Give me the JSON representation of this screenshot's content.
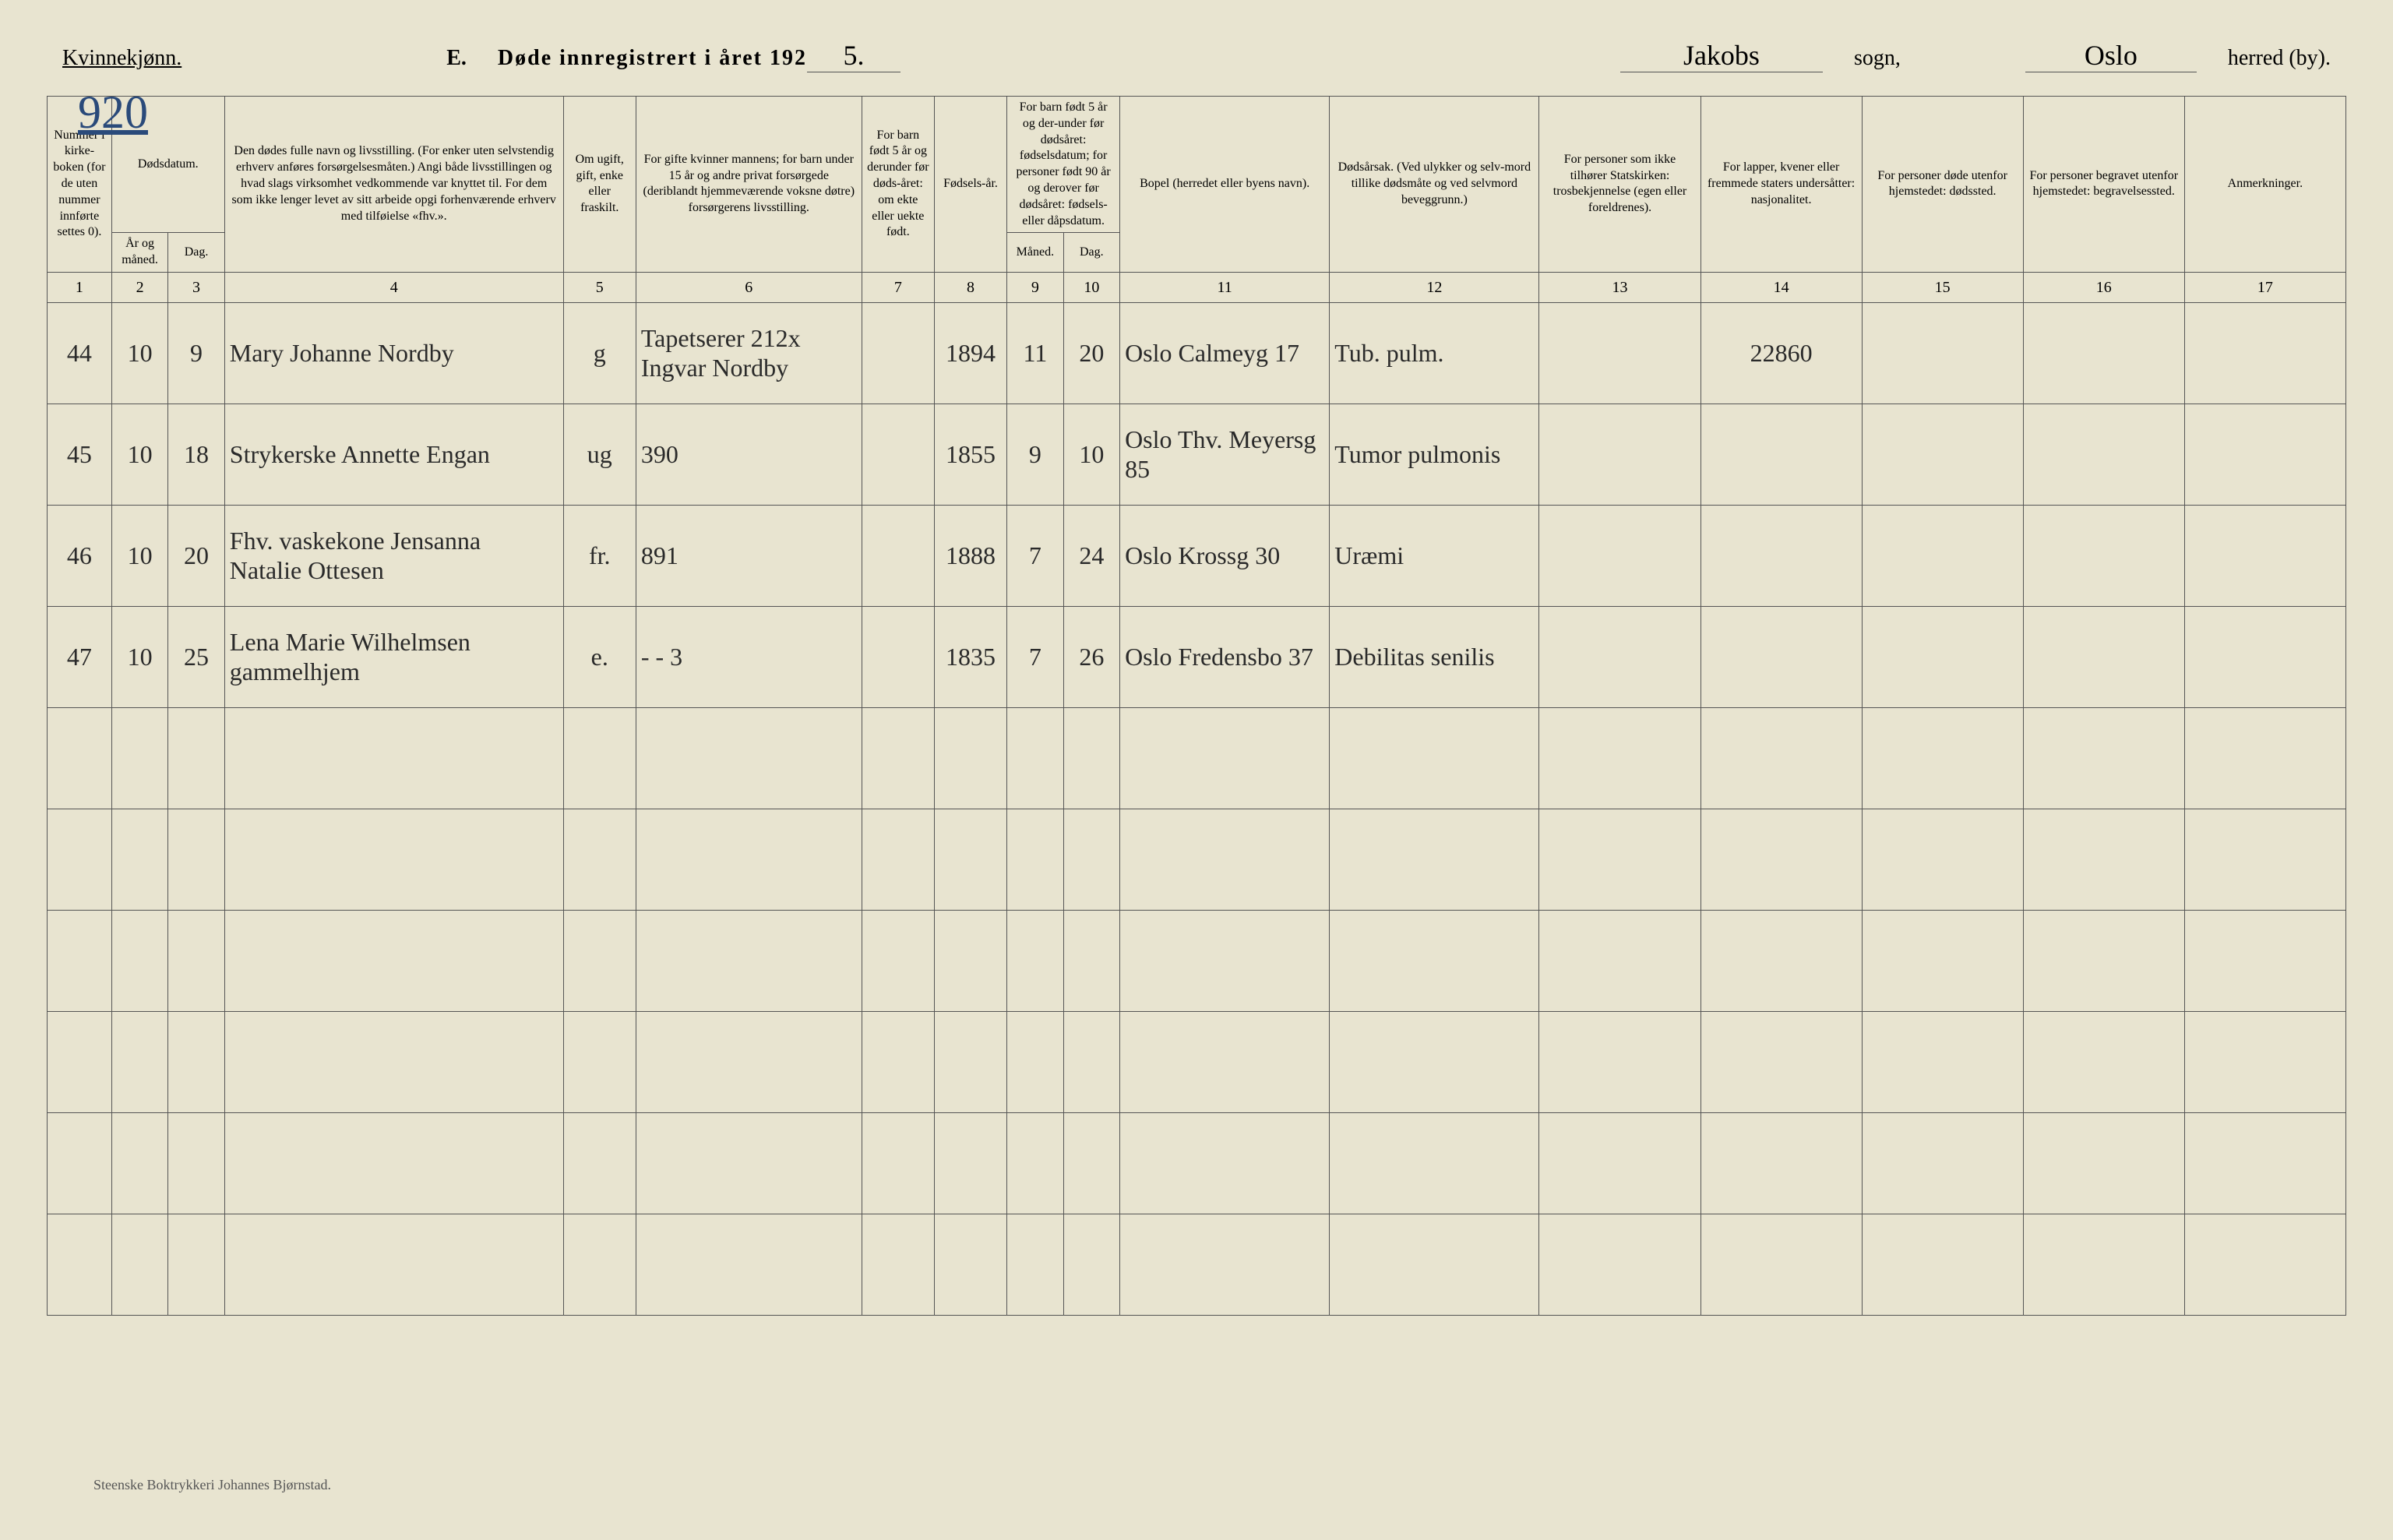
{
  "header": {
    "gender": "Kvinnekjønn.",
    "section": "E.",
    "title_prefix": "Døde innregistrert i året 192",
    "year_suffix": "5.",
    "sogn_value": "Jakobs",
    "sogn_label": "sogn,",
    "herred_value": "Oslo",
    "herred_label": "herred (by)."
  },
  "page_number": "920",
  "columns": {
    "c1": "Nummer i kirke-boken (for de uten nummer innførte settes 0).",
    "c2_3_top": "Dødsdatum.",
    "c2": "År og måned.",
    "c3": "Dag.",
    "c4": "Den dødes fulle navn og livsstilling. (For enker uten selvstendig erhverv anføres forsørgelsesmåten.) Angi både livsstillingen og hvad slags virksomhet vedkommende var knyttet til. For dem som ikke lenger levet av sitt arbeide opgi forhenværende erhverv med tilføielse «fhv.».",
    "c5": "Om ugift, gift, enke eller fraskilt.",
    "c6": "For gifte kvinner mannens; for barn under 15 år og andre privat forsørgede (deriblandt hjemmeværende voksne døtre) forsørgerens livsstilling.",
    "c7": "For barn født 5 år og derunder før døds-året: om ekte eller uekte født.",
    "c8": "Fødsels-år.",
    "c9_10_top": "For barn født 5 år og der-under før dødsåret: fødselsdatum; for personer født 90 år og derover før dødsåret: fødsels- eller dåpsdatum.",
    "c9": "Måned.",
    "c10": "Dag.",
    "c11": "Bopel (herredet eller byens navn).",
    "c12": "Dødsårsak. (Ved ulykker og selv-mord tillike dødsmåte og ved selvmord beveggrunn.)",
    "c13": "For personer som ikke tilhører Statskirken: trosbekjennelse (egen eller foreldrenes).",
    "c14": "For lapper, kvener eller fremmede staters undersåtter: nasjonalitet.",
    "c15": "For personer døde utenfor hjemstedet: dødssted.",
    "c16": "For personer begravet utenfor hjemstedet: begravelsessted.",
    "c17": "Anmerkninger."
  },
  "col_nums": [
    "1",
    "2",
    "3",
    "4",
    "5",
    "6",
    "7",
    "8",
    "9",
    "10",
    "11",
    "12",
    "13",
    "14",
    "15",
    "16",
    "17"
  ],
  "rows": [
    {
      "num": "44",
      "maaned": "10",
      "dag": "9",
      "navn": "Mary Johanne Nordby",
      "sivil": "g",
      "forsorger": "Tapetserer 212x Ingvar Nordby",
      "ekte": "",
      "faar": "1894",
      "fmnd": "11",
      "fdag": "20",
      "bopel": "Oslo Calmeyg 17",
      "aarsak": "Tub. pulm.",
      "tro": "",
      "nasj": "22860",
      "dsted": "",
      "bsted": "",
      "anm": ""
    },
    {
      "num": "45",
      "maaned": "10",
      "dag": "18",
      "navn": "Strykerske Annette Engan",
      "sivil": "ug",
      "forsorger": "390",
      "ekte": "",
      "faar": "1855",
      "fmnd": "9",
      "fdag": "10",
      "bopel": "Oslo Thv. Meyersg 85",
      "aarsak": "Tumor pulmonis",
      "tro": "",
      "nasj": "",
      "dsted": "",
      "bsted": "",
      "anm": ""
    },
    {
      "num": "46",
      "maaned": "10",
      "dag": "20",
      "navn": "Fhv. vaskekone Jensanna Natalie Ottesen",
      "sivil": "fr.",
      "forsorger": "891",
      "ekte": "",
      "faar": "1888",
      "fmnd": "7",
      "fdag": "24",
      "bopel": "Oslo Krossg 30",
      "aarsak": "Uræmi",
      "tro": "",
      "nasj": "",
      "dsted": "",
      "bsted": "",
      "anm": ""
    },
    {
      "num": "47",
      "maaned": "10",
      "dag": "25",
      "navn": "Lena Marie Wilhelmsen gammelhjem",
      "sivil": "e.",
      "forsorger": "- - 3",
      "ekte": "",
      "faar": "1835",
      "fmnd": "7",
      "fdag": "26",
      "bopel": "Oslo Fredensbo 37",
      "aarsak": "Debilitas senilis",
      "tro": "",
      "nasj": "",
      "dsted": "",
      "bsted": "",
      "anm": ""
    }
  ],
  "empty_rows": 6,
  "footnote": "Steenske Boktrykkeri Johannes Bjørnstad.",
  "colors": {
    "paper": "#e8e4d0",
    "ink": "#2a2a2a",
    "border": "#555555",
    "handwriting_blue": "#2a4a7a"
  }
}
